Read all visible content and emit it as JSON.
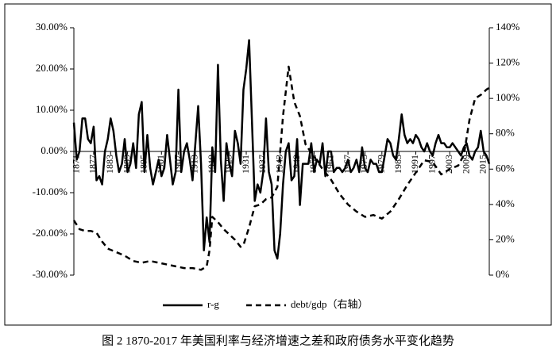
{
  "chart_data": {
    "type": "line",
    "caption": "图 2 1870-2017 年美国利率与经济增速之差和政府债务水平变化趋势",
    "xlim": [
      1870,
      2017
    ],
    "xticks": [
      1871,
      1877,
      1883,
      1889,
      1895,
      1901,
      1907,
      1913,
      1919,
      1925,
      1931,
      1937,
      1943,
      1949,
      1955,
      1961,
      1967,
      1973,
      1979,
      1985,
      1991,
      1997,
      2003,
      2009,
      2015
    ],
    "ylim": [
      -30,
      30
    ],
    "yticks": [
      {
        "value": -30,
        "label": "-30.00%"
      },
      {
        "value": -20,
        "label": "-20.00%"
      },
      {
        "value": -10,
        "label": "-10.00%"
      },
      {
        "value": 0,
        "label": "0.00%"
      },
      {
        "value": 10,
        "label": "10.00%"
      },
      {
        "value": 20,
        "label": "20.00%"
      },
      {
        "value": 30,
        "label": "30.00%"
      }
    ],
    "y2lim": [
      0,
      140
    ],
    "y2ticks": [
      {
        "value": 0,
        "label": "0%"
      },
      {
        "value": 20,
        "label": "20%"
      },
      {
        "value": 40,
        "label": "40%"
      },
      {
        "value": 60,
        "label": "60%"
      },
      {
        "value": 80,
        "label": "80%"
      },
      {
        "value": 100,
        "label": "100%"
      },
      {
        "value": 120,
        "label": "120%"
      },
      {
        "value": 140,
        "label": "140%"
      }
    ],
    "series": [
      {
        "name": "r-g",
        "color": "#000000",
        "dashed": false,
        "x": [
          1870,
          1871,
          1872,
          1873,
          1874,
          1875,
          1876,
          1877,
          1878,
          1879,
          1880,
          1881,
          1882,
          1883,
          1884,
          1885,
          1886,
          1887,
          1888,
          1889,
          1890,
          1891,
          1892,
          1893,
          1894,
          1895,
          1896,
          1897,
          1898,
          1899,
          1900,
          1901,
          1902,
          1903,
          1904,
          1905,
          1906,
          1907,
          1908,
          1909,
          1910,
          1911,
          1912,
          1913,
          1914,
          1915,
          1916,
          1917,
          1918,
          1919,
          1920,
          1921,
          1922,
          1923,
          1924,
          1925,
          1926,
          1927,
          1928,
          1929,
          1930,
          1931,
          1932,
          1933,
          1934,
          1935,
          1936,
          1937,
          1938,
          1939,
          1940,
          1941,
          1942,
          1943,
          1944,
          1945,
          1946,
          1947,
          1948,
          1949,
          1950,
          1951,
          1952,
          1953,
          1954,
          1955,
          1956,
          1957,
          1958,
          1959,
          1960,
          1961,
          1962,
          1963,
          1964,
          1965,
          1966,
          1967,
          1968,
          1969,
          1970,
          1971,
          1972,
          1973,
          1974,
          1975,
          1976,
          1977,
          1978,
          1979,
          1980,
          1981,
          1982,
          1983,
          1984,
          1985,
          1986,
          1987,
          1988,
          1989,
          1990,
          1991,
          1992,
          1993,
          1994,
          1995,
          1996,
          1997,
          1998,
          1999,
          2000,
          2001,
          2002,
          2003,
          2004,
          2005,
          2006,
          2007,
          2008,
          2009,
          2010,
          2011,
          2012,
          2013,
          2014,
          2015,
          2016,
          2017
        ],
        "values": [
          7,
          -2,
          0,
          8,
          8,
          3,
          2,
          6,
          -7,
          -6,
          -8,
          0,
          3,
          8,
          5,
          -1,
          -5,
          -3,
          3,
          -5,
          -3,
          2,
          -4,
          9,
          12,
          -5,
          4,
          -4,
          -8,
          -5,
          -2,
          -6,
          -4,
          4,
          -2,
          -8,
          -5,
          15,
          -5,
          0,
          2,
          -2,
          -7,
          2,
          11,
          -3,
          -24,
          -16,
          -22,
          1,
          -5,
          21,
          -2,
          -12,
          2,
          -3,
          -6,
          5,
          2,
          -3,
          15,
          20,
          27,
          8,
          -12,
          -8,
          -10,
          -5,
          8,
          -5,
          -8,
          -24,
          -26,
          -20,
          -8,
          0,
          2,
          -7,
          -6,
          3,
          -13,
          -3,
          -3,
          -3,
          2,
          -5,
          -2,
          -3,
          2,
          -6,
          0,
          0,
          -5,
          -4,
          -4,
          -5,
          -4,
          -2,
          -5,
          -4,
          -2,
          -5,
          1,
          -4,
          -5,
          -2,
          -3,
          -3,
          -5,
          -5,
          -1,
          3,
          2,
          -1,
          -2,
          3,
          9,
          4,
          2,
          3,
          2,
          4,
          3,
          1,
          0,
          2,
          0,
          -1,
          2,
          4,
          2,
          2,
          1,
          1,
          2,
          1,
          0,
          -1,
          1,
          2,
          -1,
          -2,
          0,
          1,
          5,
          0,
          -1,
          -3
        ]
      },
      {
        "name": "debt/gdp（右轴）",
        "color": "#000000",
        "dashed": true,
        "axis": "y2",
        "x": [
          1870,
          1872,
          1874,
          1876,
          1878,
          1880,
          1882,
          1885,
          1888,
          1891,
          1894,
          1897,
          1900,
          1903,
          1906,
          1909,
          1912,
          1915,
          1917,
          1918,
          1919,
          1921,
          1923,
          1925,
          1927,
          1929,
          1930,
          1932,
          1934,
          1936,
          1938,
          1940,
          1942,
          1944,
          1946,
          1948,
          1950,
          1952,
          1955,
          1958,
          1961,
          1964,
          1967,
          1970,
          1973,
          1976,
          1979,
          1982,
          1985,
          1988,
          1991,
          1994,
          1997,
          2000,
          2003,
          2006,
          2008,
          2010,
          2012,
          2014,
          2016,
          2017
        ],
        "values": [
          31,
          26,
          25,
          25,
          24,
          19,
          15,
          13,
          11,
          8,
          7,
          8,
          7,
          6,
          5,
          4,
          4,
          3,
          5,
          14,
          33,
          30,
          26,
          23,
          20,
          16,
          17,
          27,
          39,
          40,
          43,
          44,
          50,
          90,
          118,
          98,
          90,
          74,
          67,
          60,
          54,
          46,
          40,
          36,
          33,
          34,
          32,
          36,
          43,
          51,
          58,
          65,
          64,
          57,
          60,
          62,
          68,
          88,
          100,
          102,
          105,
          106
        ]
      }
    ]
  }
}
